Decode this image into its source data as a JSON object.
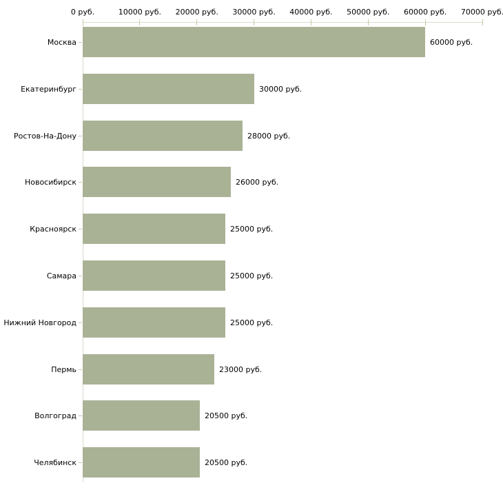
{
  "chart_data": {
    "type": "bar",
    "orientation": "horizontal",
    "title": "",
    "xlabel": "",
    "ylabel": "",
    "categories": [
      "Москва",
      "Екатеринбург",
      "Ростов-На-Дону",
      "Новосибирск",
      "Красноярск",
      "Самара",
      "Нижний Новгород",
      "Пермь",
      "Волгоград",
      "Челябинск"
    ],
    "values": [
      60000,
      30000,
      28000,
      26000,
      25000,
      25000,
      25000,
      23000,
      20500,
      20500
    ],
    "value_labels": [
      "60000 руб.",
      "30000 руб.",
      "28000 руб.",
      "26000 руб.",
      "25000 руб.",
      "25000 руб.",
      "25000 руб.",
      "23000 руб.",
      "20500 руб.",
      "20500 руб."
    ],
    "x_ticks": [
      0,
      10000,
      20000,
      30000,
      40000,
      50000,
      60000,
      70000
    ],
    "x_tick_labels": [
      "0 руб.",
      "10000 руб.",
      "20000 руб.",
      "30000 руб.",
      "40000 руб.",
      "50000 руб.",
      "60000 руб.",
      "70000 руб."
    ],
    "xlim": [
      0,
      70000
    ],
    "grid": false,
    "legend": "none",
    "colors": {
      "bar": "#aab296",
      "axis_line": "#d9d9ce",
      "tick_mark": "#c5c8a0",
      "text": "#000000",
      "background": "#ffffff"
    }
  }
}
